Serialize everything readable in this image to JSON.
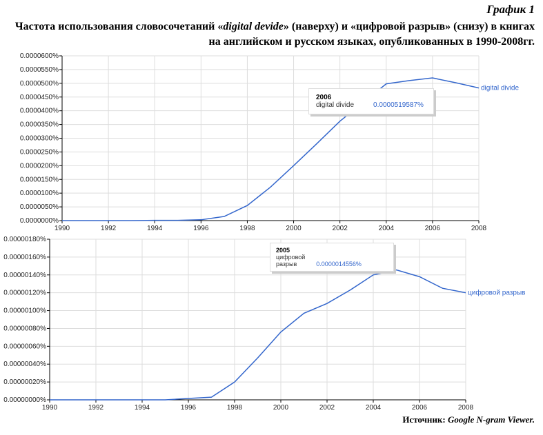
{
  "figure_label": "График 1",
  "title_parts": [
    "Частота использования словосочетаний «",
    "digital devide",
    "» (наверху) и «цифровой разрыв» (снизу) в книгах на английском и русском языках, опубликованных в 1990-2008гг."
  ],
  "source_label": "Источник: ",
  "source_value": "Google N-gram Viewer.",
  "colors": {
    "series": "#3366cc",
    "grid": "#dddddd",
    "axis": "#000000"
  },
  "chart_data": [
    {
      "type": "line",
      "xlim": [
        1990,
        2008
      ],
      "ylim": [
        0,
        6e-05
      ],
      "grid": true,
      "x_ticks": [
        "1990",
        "1992",
        "1994",
        "1996",
        "1998",
        "2000",
        "2002",
        "2004",
        "2006",
        "2008"
      ],
      "y_ticks": [
        "0.0000000%",
        "0.0000050%",
        "0.0000100%",
        "0.0000150%",
        "0.0000200%",
        "0.0000250%",
        "0.0000300%",
        "0.0000350%",
        "0.0000400%",
        "0.0000450%",
        "0.0000500%",
        "0.0000550%",
        "0.0000600%"
      ],
      "x": [
        1990,
        1991,
        1992,
        1993,
        1994,
        1995,
        1996,
        1997,
        1998,
        1999,
        2000,
        2001,
        2002,
        2003,
        2004,
        2005,
        2006,
        2007,
        2008
      ],
      "series": [
        {
          "name": "digital divide",
          "values": [
            0,
            0,
            0,
            0,
            1e-07,
            1e-07,
            3e-07,
            1.5e-06,
            5.5e-06,
            1.22e-05,
            2e-05,
            2.8e-05,
            3.62e-05,
            4.3e-05,
            4.98e-05,
            5.1e-05,
            5.19587e-05,
            5.02e-05,
            4.83e-05
          ]
        }
      ],
      "tooltip": {
        "year": "2006",
        "name": "digital divide",
        "value": "0.0000519587%"
      }
    },
    {
      "type": "line",
      "xlim": [
        1990,
        2008
      ],
      "ylim": [
        0,
        1.8e-06
      ],
      "grid": true,
      "x_ticks": [
        "1990",
        "1992",
        "1994",
        "1996",
        "1998",
        "2000",
        "2002",
        "2004",
        "2006",
        "2008"
      ],
      "y_ticks": [
        "0.00000000%",
        "0.00000020%",
        "0.00000040%",
        "0.00000060%",
        "0.00000080%",
        "0.00000100%",
        "0.00000120%",
        "0.00000140%",
        "0.00000160%",
        "0.00000180%"
      ],
      "x": [
        1990,
        1991,
        1992,
        1993,
        1994,
        1995,
        1996,
        1997,
        1998,
        1999,
        2000,
        2001,
        2002,
        2003,
        2004,
        2005,
        2006,
        2007,
        2008
      ],
      "series": [
        {
          "name": "цифровой разрыв",
          "values": [
            0,
            0,
            0,
            0,
            0,
            0,
            1.5e-08,
            3e-08,
            2e-07,
            4.7e-07,
            7.6e-07,
            9.7e-07,
            1.08e-06,
            1.23e-06,
            1.4e-06,
            1.4556e-06,
            1.38e-06,
            1.25e-06,
            1.2e-06
          ]
        }
      ],
      "tooltip": {
        "year": "2005",
        "name": "цифровой разрыв",
        "value": "0.0000014556%"
      }
    }
  ]
}
